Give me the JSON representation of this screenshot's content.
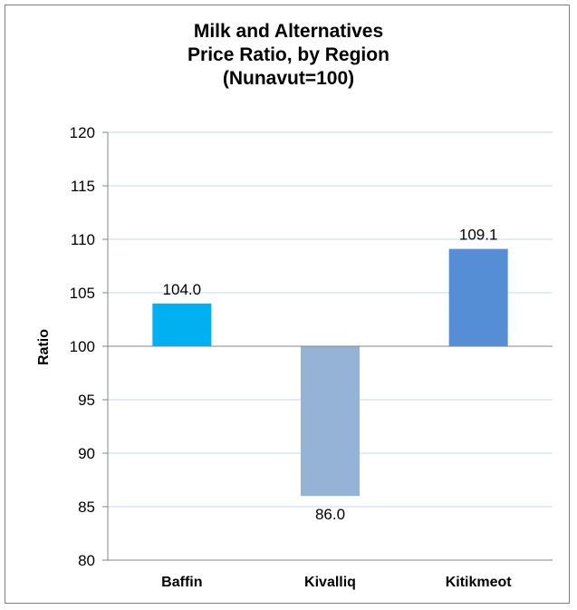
{
  "chart_data": {
    "type": "bar",
    "title_lines": [
      "Milk and Alternatives",
      "Price Ratio, by Region",
      "(Nunavut=100)"
    ],
    "xlabel": "",
    "ylabel": "Ratio",
    "categories": [
      "Baffin",
      "Kivalliq",
      "Kitikmeot"
    ],
    "values": [
      104.0,
      86.0,
      109.1
    ],
    "value_labels": [
      "104.0",
      "86.0",
      "109.1"
    ],
    "baseline": 100,
    "ylim": [
      80,
      120
    ],
    "yticks": [
      80,
      85,
      90,
      95,
      100,
      105,
      110,
      115,
      120
    ],
    "grid": true,
    "legend": "none",
    "colors": [
      "#00b0f0",
      "#95b3d7",
      "#558ed5"
    ]
  }
}
